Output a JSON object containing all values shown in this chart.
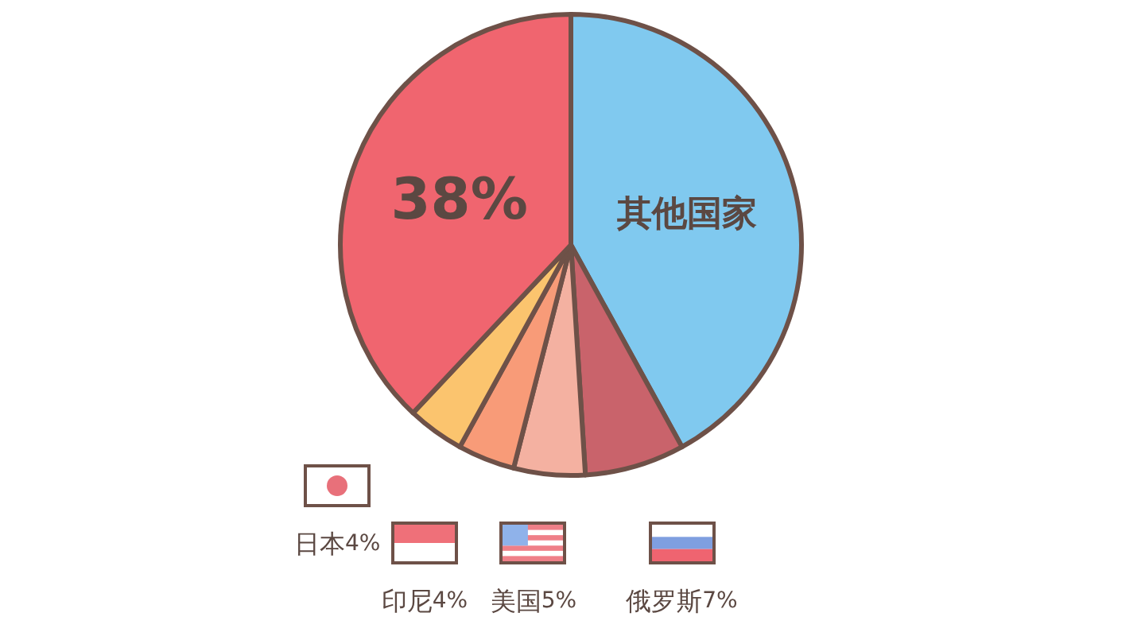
{
  "chart_data": {
    "type": "pie",
    "categories": [
      "其他国家",
      "俄罗斯",
      "美国",
      "印尼",
      "日本",
      null
    ],
    "values": [
      42,
      7,
      5,
      4,
      4,
      38
    ],
    "value_labels": [
      null,
      "7%",
      "5%",
      "4%",
      "4%",
      "38%"
    ],
    "colors": [
      "#80c9ef",
      "#c9636b",
      "#f4b1a1",
      "#f89b78",
      "#fbc46e",
      "#f0656f"
    ],
    "legend": "bottom"
  }
}
